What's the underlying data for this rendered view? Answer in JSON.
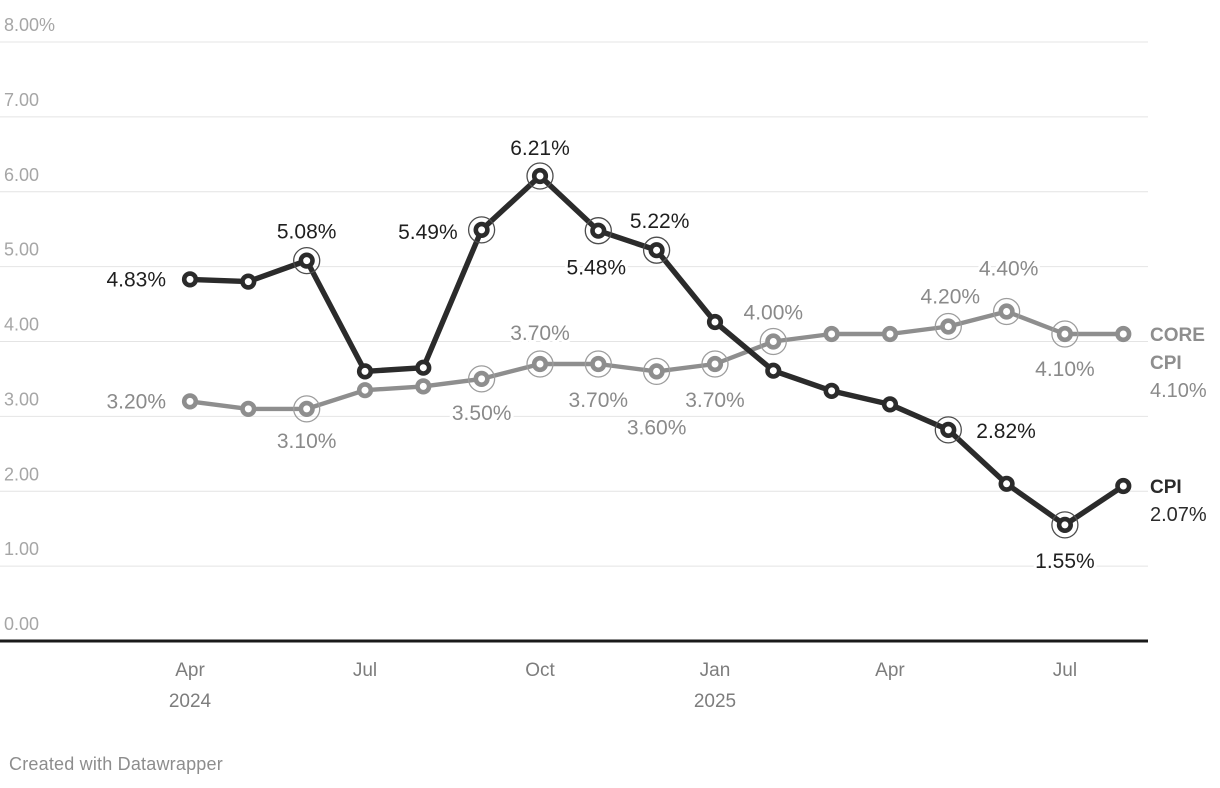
{
  "page": {
    "background": "#ffffff"
  },
  "footer": {
    "attribution": "Created with Datawrapper"
  },
  "chart_data": {
    "type": "line",
    "title": "",
    "x": [
      "Apr 2024",
      "May 2024",
      "Jun 2024",
      "Jul 2024",
      "Aug 2024",
      "Sep 2024",
      "Oct 2024",
      "Nov 2024",
      "Dec 2024",
      "Jan 2025",
      "Feb 2025",
      "Mar 2025",
      "Apr 2025",
      "May 2025",
      "Jun 2025",
      "Jul 2025",
      "Aug 2025"
    ],
    "x_ticks": [
      {
        "at": "Apr 2024",
        "line1": "Apr",
        "line2": "2024"
      },
      {
        "at": "Jul 2024",
        "line1": "Jul",
        "line2": ""
      },
      {
        "at": "Oct 2024",
        "line1": "Oct",
        "line2": ""
      },
      {
        "at": "Jan 2025",
        "line1": "Jan",
        "line2": "2025"
      },
      {
        "at": "Apr 2025",
        "line1": "Apr",
        "line2": ""
      },
      {
        "at": "Jul 2025",
        "line1": "Jul",
        "line2": ""
      }
    ],
    "y_axis": {
      "min": 0,
      "max": 8,
      "step": 1,
      "grid": true,
      "tick_labels_top_down": [
        "8.00%",
        "7.00",
        "6.00",
        "5.00",
        "4.00",
        "3.00",
        "2.00",
        "1.00",
        "0.00"
      ]
    },
    "ylim": [
      0,
      8
    ],
    "legend_position": "right-of-line-ends",
    "colors": {
      "grid": "#e4e4e4",
      "axis_baseline": "#1a1a1a",
      "y_tick_text": "#a6a6a6",
      "x_tick_text": "#7d7d7d"
    },
    "series": [
      {
        "name": "CORE CPI",
        "color": "#8e8e8e",
        "ring_color": "#9d9d9d",
        "label_color": "#8a8a8a",
        "line_width": 4.4,
        "values": [
          3.2,
          3.1,
          3.1,
          3.35,
          3.4,
          3.5,
          3.7,
          3.7,
          3.6,
          3.7,
          4.0,
          4.1,
          4.1,
          4.2,
          4.4,
          4.1,
          4.1
        ],
        "emphasized_points": [
          2,
          5,
          6,
          7,
          8,
          9,
          10,
          13,
          14,
          15
        ],
        "point_labels": [
          {
            "index": 0,
            "text": "3.20%",
            "anchor": "end",
            "dx": -24,
            "dy": 7
          },
          {
            "index": 2,
            "text": "3.10%",
            "anchor": "middle",
            "dx": 0,
            "dy": 39
          },
          {
            "index": 5,
            "text": "3.50%",
            "anchor": "middle",
            "dx": 0,
            "dy": 41
          },
          {
            "index": 6,
            "text": "3.70%",
            "anchor": "middle",
            "dx": 0,
            "dy": -24
          },
          {
            "index": 7,
            "text": "3.70%",
            "anchor": "middle",
            "dx": 0,
            "dy": 43
          },
          {
            "index": 8,
            "text": "3.60%",
            "anchor": "middle",
            "dx": 0,
            "dy": 63
          },
          {
            "index": 9,
            "text": "3.70%",
            "anchor": "middle",
            "dx": 0,
            "dy": 43
          },
          {
            "index": 10,
            "text": "4.00%",
            "anchor": "middle",
            "dx": 0,
            "dy": -22
          },
          {
            "index": 13,
            "text": "4.20%",
            "anchor": "middle",
            "dx": 2,
            "dy": -23
          },
          {
            "index": 14,
            "text": "4.40%",
            "anchor": "middle",
            "dx": 2,
            "dy": -36
          },
          {
            "index": 15,
            "text": "4.10%",
            "anchor": "middle",
            "dx": 0,
            "dy": 42
          }
        ],
        "legend": {
          "lines": [
            "CORE",
            "CPI"
          ],
          "value": "4.10%"
        }
      },
      {
        "name": "CPI",
        "color": "#2b2b2b",
        "ring_color": "#4d4d4d",
        "label_color": "#1f1f1f",
        "line_width": 5.4,
        "values": [
          4.83,
          4.8,
          5.08,
          3.6,
          3.65,
          5.49,
          6.21,
          5.48,
          5.22,
          4.26,
          3.61,
          3.34,
          3.16,
          2.82,
          2.1,
          1.55,
          2.07
        ],
        "emphasized_points": [
          2,
          5,
          6,
          7,
          8,
          13,
          15
        ],
        "point_labels": [
          {
            "index": 0,
            "text": "4.83%",
            "anchor": "end",
            "dx": -24,
            "dy": 7
          },
          {
            "index": 2,
            "text": "5.08%",
            "anchor": "middle",
            "dx": 0,
            "dy": -22
          },
          {
            "index": 5,
            "text": "5.49%",
            "anchor": "end",
            "dx": -24,
            "dy": 9
          },
          {
            "index": 6,
            "text": "6.21%",
            "anchor": "middle",
            "dx": 0,
            "dy": -21
          },
          {
            "index": 7,
            "text": "5.48%",
            "anchor": "middle",
            "dx": -2,
            "dy": 44
          },
          {
            "index": 8,
            "text": "5.22%",
            "anchor": "middle",
            "dx": 3,
            "dy": -22
          },
          {
            "index": 13,
            "text": "2.82%",
            "anchor": "start",
            "dx": 28,
            "dy": 8
          },
          {
            "index": 15,
            "text": "1.55%",
            "anchor": "middle",
            "dx": 0,
            "dy": 43
          }
        ],
        "legend": {
          "lines": [
            "CPI"
          ],
          "value": "2.07%"
        }
      }
    ]
  }
}
